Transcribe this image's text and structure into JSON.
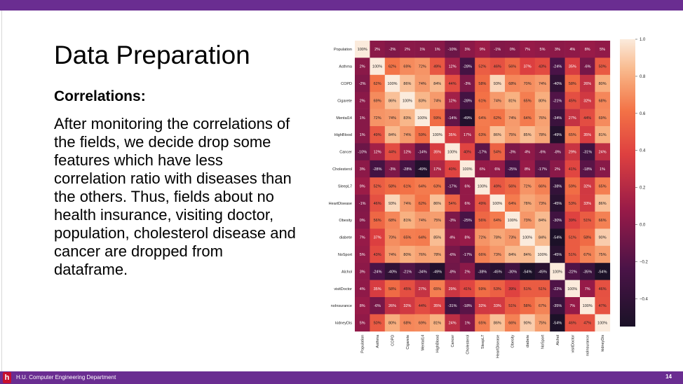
{
  "slide": {
    "title": "Data Preparation",
    "subtitle": "Correlations:",
    "body": "After monitoring the correlations of the fields, we decide drop some features which have less correlation ratio with diseases than the others. Thus, fields about no health insurance, visiting doctor, population, cholesterol disease and cancer are dropped from dataframe.",
    "footer": "H.U. Computer Engineering Department",
    "page_number": "14",
    "logo": "h"
  },
  "colors": {
    "accent": "#6a2d91",
    "logo": "#c8102e"
  },
  "chart_data": {
    "type": "heatmap",
    "labels": [
      "Population",
      "Asthma",
      "COPD",
      "Cigarete",
      "Mental14",
      "HighBlood",
      "Cancer",
      "Cholesterol",
      "SleepL7",
      "HeartDisease",
      "Obesity",
      "diabete",
      "NoSport",
      "Alchol",
      "visitDoctor",
      "noInsurance",
      "kidneyDis"
    ],
    "values": [
      [
        100,
        2,
        -2,
        2,
        1,
        1,
        -10,
        3,
        9,
        -1,
        0,
        7,
        5,
        3,
        4,
        8,
        5
      ],
      [
        2,
        100,
        62,
        69,
        72,
        49,
        12,
        -28,
        52,
        46,
        56,
        37,
        43,
        -24,
        35,
        -6,
        50
      ],
      [
        -2,
        62,
        100,
        86,
        74,
        84,
        44,
        -3,
        58,
        93,
        68,
        70,
        74,
        -40,
        58,
        26,
        80
      ],
      [
        2,
        69,
        86,
        100,
        83,
        74,
        12,
        -28,
        61,
        74,
        81,
        65,
        80,
        -21,
        45,
        32,
        68
      ],
      [
        1,
        72,
        74,
        83,
        100,
        59,
        -14,
        -49,
        64,
        62,
        74,
        64,
        76,
        -34,
        27,
        44,
        69
      ],
      [
        1,
        49,
        84,
        74,
        59,
        100,
        35,
        17,
        63,
        86,
        75,
        85,
        78,
        -49,
        65,
        35,
        81
      ],
      [
        -10,
        12,
        44,
        12,
        -14,
        35,
        100,
        40,
        -17,
        54,
        -3,
        4,
        -6,
        -8,
        29,
        -31,
        24
      ],
      [
        3,
        -28,
        -3,
        -28,
        -49,
        17,
        40,
        100,
        6,
        6,
        -25,
        8,
        -17,
        2,
        41,
        -18,
        1
      ],
      [
        9,
        52,
        58,
        61,
        64,
        63,
        -17,
        6,
        100,
        49,
        56,
        72,
        66,
        -38,
        59,
        32,
        65
      ],
      [
        -1,
        46,
        93,
        74,
        62,
        86,
        54,
        6,
        49,
        100,
        64,
        78,
        73,
        -45,
        53,
        33,
        86
      ],
      [
        0,
        56,
        68,
        81,
        74,
        75,
        -3,
        -25,
        56,
        64,
        100,
        73,
        84,
        -30,
        39,
        51,
        66
      ],
      [
        7,
        37,
        70,
        65,
        64,
        85,
        4,
        8,
        72,
        78,
        73,
        100,
        84,
        -54,
        51,
        58,
        90
      ],
      [
        5,
        43,
        74,
        80,
        76,
        78,
        -6,
        -17,
        66,
        73,
        84,
        84,
        100,
        -45,
        51,
        67,
        75
      ],
      [
        3,
        -24,
        -40,
        -21,
        -34,
        -49,
        -8,
        2,
        -38,
        -45,
        -30,
        -54,
        -45,
        100,
        -22,
        -35,
        -54
      ],
      [
        4,
        35,
        58,
        45,
        27,
        65,
        29,
        41,
        59,
        53,
        39,
        51,
        51,
        -22,
        100,
        7,
        46
      ],
      [
        8,
        -6,
        26,
        32,
        44,
        35,
        -31,
        -18,
        32,
        33,
        51,
        58,
        67,
        -35,
        7,
        100,
        47
      ],
      [
        5,
        50,
        80,
        68,
        69,
        81,
        24,
        1,
        65,
        86,
        66,
        90,
        75,
        -54,
        46,
        47,
        100
      ]
    ],
    "value_suffix": "%",
    "color_range": [
      -0.55,
      1.0
    ],
    "colorbar_ticks": [
      "1.0",
      "0.8",
      "0.6",
      "0.4",
      "0.2",
      "0.0",
      "−0.2",
      "−0.4"
    ],
    "colorbar_tick_values": [
      1.0,
      0.8,
      0.6,
      0.4,
      0.2,
      0.0,
      -0.2,
      -0.4
    ],
    "colormap": "rocket",
    "title": "",
    "xlabel": "",
    "ylabel": ""
  }
}
